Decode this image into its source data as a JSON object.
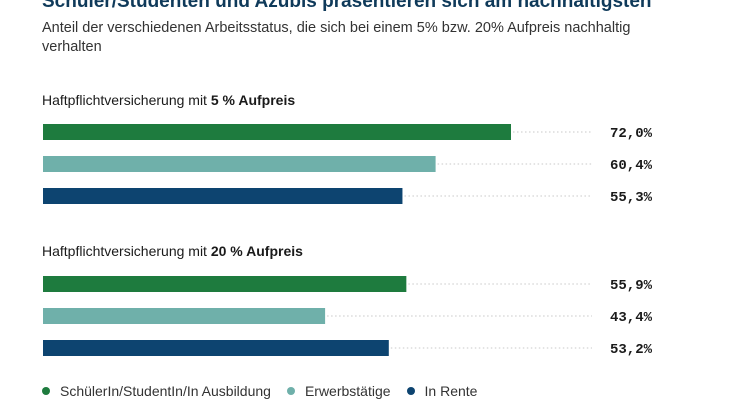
{
  "title": "Schüler/Studenten und Azubis präsentieren sich am nachhaltigsten",
  "subtitle": "Anteil der verschiedenen Arbeitsstatus, die sich bei einem 5% bzw. 20% Aufpreis nachhaltig verhalten",
  "colors": {
    "schueler": "#1e7b3e",
    "erwerb": "#6fb0aa",
    "rente": "#0d4470",
    "leader": "#c8c8c8"
  },
  "chart_data": {
    "type": "bar",
    "orientation": "horizontal",
    "xlim": [
      0,
      100
    ],
    "groups": [
      {
        "label_prefix": "Haftpflichtversicherung mit ",
        "label_bold": "5 % Aufpreis",
        "values": [
          72.0,
          60.4,
          55.3
        ],
        "labels": [
          "72,0%",
          "60,4%",
          "55,3%"
        ]
      },
      {
        "label_prefix": "Haftpflichtversicherung mit ",
        "label_bold": "20 % Aufpreis",
        "values": [
          55.9,
          43.4,
          53.2
        ],
        "labels": [
          "55,9%",
          "43,4%",
          "53,2%"
        ]
      }
    ],
    "series": [
      {
        "name": "SchülerIn/StudentIn/In Ausbildung"
      },
      {
        "name": "Erwerbstätige"
      },
      {
        "name": "In Rente"
      }
    ],
    "legend_position": "bottom"
  }
}
